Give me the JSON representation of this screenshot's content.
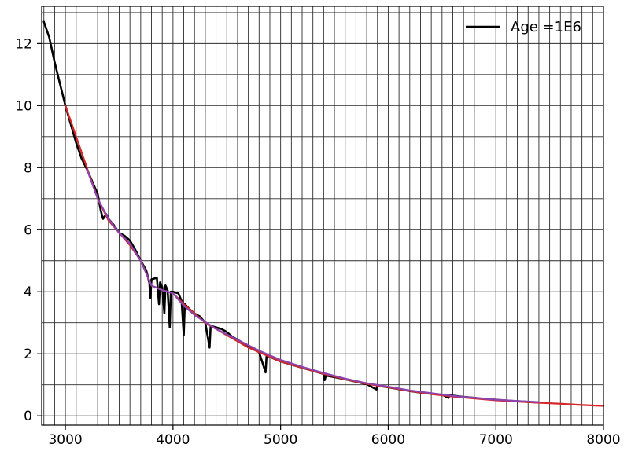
{
  "chart_data": {
    "type": "line",
    "title": "",
    "xlabel": "",
    "ylabel": "",
    "xlim": [
      2780,
      8000
    ],
    "ylim": [
      -0.3,
      13.2
    ],
    "grid": true,
    "legend_position": "top-right",
    "x_ticks": [
      3000,
      4000,
      5000,
      6000,
      7000,
      8000
    ],
    "y_ticks": [
      0,
      2,
      4,
      6,
      8,
      10,
      12
    ],
    "x_tick_labels": [
      "3000",
      "4000",
      "5000",
      "6000",
      "7000",
      "8000"
    ],
    "y_tick_labels": [
      "0",
      "2",
      "4",
      "6",
      "8",
      "10",
      "12"
    ],
    "legend": [
      {
        "label": "Age =1E6",
        "color": "#000000"
      }
    ],
    "series": [
      {
        "name": "Age =1E6",
        "color": "#000000",
        "points": [
          [
            2800,
            12.7
          ],
          [
            2850,
            12.2
          ],
          [
            2900,
            11.4
          ],
          [
            2950,
            10.7
          ],
          [
            3000,
            10.0
          ],
          [
            3050,
            9.4
          ],
          [
            3100,
            8.8
          ],
          [
            3150,
            8.3
          ],
          [
            3200,
            7.95
          ],
          [
            3250,
            7.55
          ],
          [
            3300,
            7.15
          ],
          [
            3330,
            6.6
          ],
          [
            3350,
            6.35
          ],
          [
            3380,
            6.5
          ],
          [
            3400,
            6.35
          ],
          [
            3450,
            6.15
          ],
          [
            3500,
            5.9
          ],
          [
            3550,
            5.8
          ],
          [
            3600,
            5.65
          ],
          [
            3650,
            5.35
          ],
          [
            3700,
            5.0
          ],
          [
            3750,
            4.7
          ],
          [
            3780,
            4.3
          ],
          [
            3790,
            3.8
          ],
          [
            3800,
            4.4
          ],
          [
            3850,
            4.45
          ],
          [
            3870,
            3.6
          ],
          [
            3880,
            4.3
          ],
          [
            3900,
            4.15
          ],
          [
            3920,
            3.3
          ],
          [
            3930,
            4.2
          ],
          [
            3950,
            4.05
          ],
          [
            3970,
            2.85
          ],
          [
            3980,
            4.0
          ],
          [
            4000,
            4.0
          ],
          [
            4050,
            3.95
          ],
          [
            4080,
            3.7
          ],
          [
            4100,
            2.6
          ],
          [
            4110,
            3.6
          ],
          [
            4150,
            3.45
          ],
          [
            4200,
            3.3
          ],
          [
            4250,
            3.2
          ],
          [
            4300,
            3.0
          ],
          [
            4340,
            2.2
          ],
          [
            4350,
            2.9
          ],
          [
            4400,
            2.85
          ],
          [
            4450,
            2.8
          ],
          [
            4500,
            2.7
          ],
          [
            4550,
            2.55
          ],
          [
            4600,
            2.45
          ],
          [
            4700,
            2.25
          ],
          [
            4800,
            2.05
          ],
          [
            4860,
            1.4
          ],
          [
            4870,
            1.95
          ],
          [
            4900,
            1.9
          ],
          [
            5000,
            1.75
          ],
          [
            5100,
            1.65
          ],
          [
            5200,
            1.55
          ],
          [
            5300,
            1.45
          ],
          [
            5400,
            1.35
          ],
          [
            5410,
            1.15
          ],
          [
            5420,
            1.3
          ],
          [
            5500,
            1.25
          ],
          [
            5600,
            1.18
          ],
          [
            5700,
            1.1
          ],
          [
            5800,
            1.02
          ],
          [
            5890,
            0.85
          ],
          [
            5900,
            0.97
          ],
          [
            6000,
            0.92
          ],
          [
            6100,
            0.86
          ],
          [
            6200,
            0.8
          ],
          [
            6300,
            0.75
          ],
          [
            6400,
            0.72
          ],
          [
            6500,
            0.68
          ],
          [
            6560,
            0.58
          ],
          [
            6570,
            0.66
          ],
          [
            6700,
            0.61
          ],
          [
            6800,
            0.58
          ],
          [
            6900,
            0.54
          ],
          [
            7000,
            0.52
          ],
          [
            7100,
            0.49
          ],
          [
            7200,
            0.47
          ],
          [
            7300,
            0.45
          ],
          [
            7400,
            0.43
          ]
        ]
      },
      {
        "name": "",
        "color": "#d62728",
        "points": [
          [
            3000,
            10.0
          ],
          [
            3100,
            9.0
          ],
          [
            3200,
            8.0
          ],
          [
            3300,
            7.0
          ],
          [
            3400,
            6.3
          ],
          [
            3500,
            5.9
          ],
          [
            3600,
            5.5
          ],
          [
            3700,
            5.0
          ],
          [
            3800,
            4.2
          ],
          [
            3900,
            4.05
          ],
          [
            4000,
            3.95
          ],
          [
            4100,
            3.6
          ],
          [
            4200,
            3.3
          ],
          [
            4300,
            3.0
          ],
          [
            4500,
            2.6
          ],
          [
            4700,
            2.2
          ],
          [
            4900,
            1.9
          ],
          [
            5000,
            1.75
          ],
          [
            5200,
            1.55
          ],
          [
            5400,
            1.35
          ],
          [
            5600,
            1.18
          ],
          [
            5800,
            1.03
          ],
          [
            6000,
            0.92
          ],
          [
            6200,
            0.8
          ],
          [
            6400,
            0.7
          ],
          [
            6600,
            0.62
          ],
          [
            6800,
            0.56
          ],
          [
            7000,
            0.5
          ],
          [
            7200,
            0.46
          ],
          [
            7400,
            0.42
          ],
          [
            7600,
            0.39
          ],
          [
            7800,
            0.35
          ],
          [
            8000,
            0.32
          ]
        ]
      },
      {
        "name": "",
        "color": "#8e44ad",
        "points": [
          [
            3200,
            7.95
          ],
          [
            3300,
            7.0
          ],
          [
            3400,
            6.35
          ],
          [
            3500,
            5.9
          ],
          [
            3600,
            5.55
          ],
          [
            3700,
            5.0
          ],
          [
            3800,
            4.2
          ],
          [
            3900,
            4.05
          ],
          [
            4000,
            3.95
          ],
          [
            4100,
            3.55
          ],
          [
            4200,
            3.25
          ],
          [
            4400,
            2.8
          ],
          [
            4600,
            2.45
          ],
          [
            4800,
            2.1
          ],
          [
            5000,
            1.8
          ],
          [
            5200,
            1.58
          ],
          [
            5400,
            1.38
          ],
          [
            5600,
            1.2
          ],
          [
            5800,
            1.05
          ],
          [
            6000,
            0.94
          ],
          [
            6200,
            0.82
          ],
          [
            6400,
            0.73
          ],
          [
            6600,
            0.64
          ],
          [
            6800,
            0.58
          ],
          [
            7000,
            0.52
          ],
          [
            7200,
            0.48
          ],
          [
            7400,
            0.44
          ]
        ]
      }
    ]
  }
}
